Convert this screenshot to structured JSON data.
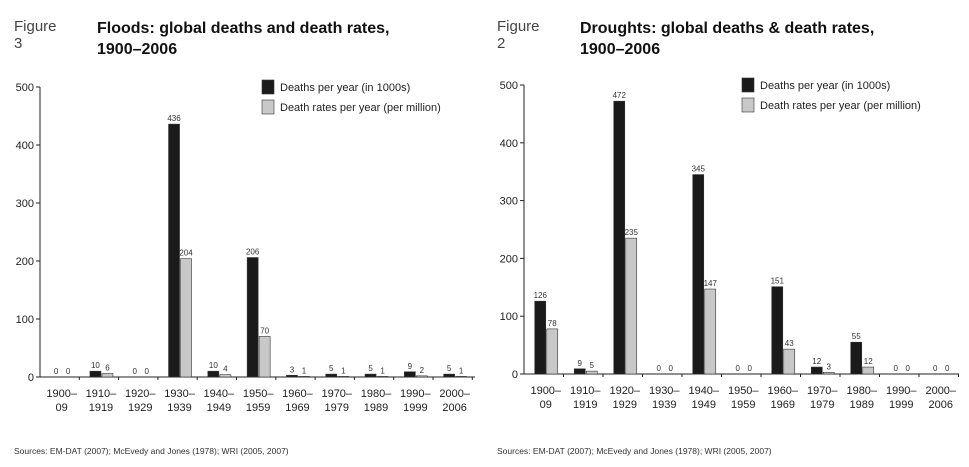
{
  "chart_data": [
    {
      "type": "bar",
      "figure_label": "Figure 3",
      "title_line1": "Floods: global deaths and death rates,",
      "title_line2": "1900–2006",
      "source": "Sources: EM-DAT (2007); McEvedy and Jones (1978); WRI (2005, 2007)",
      "categories": [
        [
          "1900–",
          "09"
        ],
        [
          "1910–",
          "1919"
        ],
        [
          "1920–",
          "1929"
        ],
        [
          "1930–",
          "1939"
        ],
        [
          "1940–",
          "1949"
        ],
        [
          "1950–",
          "1959"
        ],
        [
          "1960–",
          "1969"
        ],
        [
          "1970–",
          "1979"
        ],
        [
          "1980–",
          "1989"
        ],
        [
          "1990–",
          "1999"
        ],
        [
          "2000–",
          "2006"
        ]
      ],
      "series": [
        {
          "name": "Deaths per year (in 1000s)",
          "color": "#1a1a1a",
          "values": [
            0,
            10,
            0,
            436,
            10,
            206,
            3,
            5,
            5,
            9,
            5
          ]
        },
        {
          "name": "Death rates per year (per million)",
          "color": "#c8c8c8",
          "values": [
            0,
            6,
            0,
            204,
            4,
            70,
            1,
            1,
            1,
            2,
            1
          ]
        }
      ],
      "yticks": [
        "0",
        "100",
        "200",
        "300",
        "400",
        "500"
      ],
      "ylim": [
        0,
        500
      ],
      "legend_position": "top-right",
      "grid": false
    },
    {
      "type": "bar",
      "figure_label": "Figure 2",
      "title_line1": "Droughts: global deaths & death rates,",
      "title_line2": "1900–2006",
      "source": "Sources: EM-DAT (2007); McEvedy and Jones (1978); WRI (2005, 2007)",
      "categories": [
        [
          "1900–",
          "09"
        ],
        [
          "1910–",
          "1919"
        ],
        [
          "1920–",
          "1929"
        ],
        [
          "1930–",
          "1939"
        ],
        [
          "1940–",
          "1949"
        ],
        [
          "1950–",
          "1959"
        ],
        [
          "1960–",
          "1969"
        ],
        [
          "1970–",
          "1979"
        ],
        [
          "1980–",
          "1989"
        ],
        [
          "1990–",
          "1999"
        ],
        [
          "2000–",
          "2006"
        ]
      ],
      "series": [
        {
          "name": "Deaths per year (in 1000s)",
          "color": "#1a1a1a",
          "values": [
            126,
            9,
            472,
            0,
            345,
            0,
            151,
            12,
            55,
            0,
            0
          ]
        },
        {
          "name": "Death rates per year (per million)",
          "color": "#c8c8c8",
          "values": [
            78,
            5,
            235,
            0,
            147,
            0,
            43,
            3,
            12,
            0,
            0
          ]
        }
      ],
      "yticks": [
        "0",
        "100",
        "200",
        "300",
        "400",
        "500"
      ],
      "ylim": [
        0,
        500
      ],
      "legend_position": "top-right",
      "grid": false
    }
  ]
}
